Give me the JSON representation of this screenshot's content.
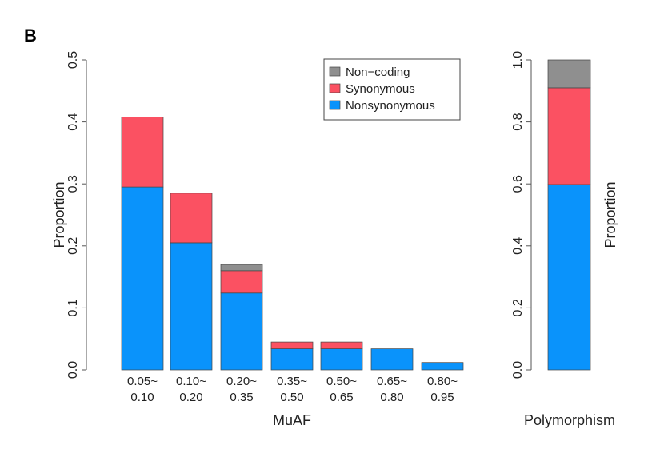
{
  "panel_label": "B",
  "chart_data": [
    {
      "type": "bar",
      "stacked": true,
      "title": "",
      "xlabel": "MuAF",
      "ylabel": "Proportion",
      "ylim": [
        0,
        0.5
      ],
      "yticks": [
        "0.0",
        "0.1",
        "0.2",
        "0.3",
        "0.4",
        "0.5"
      ],
      "categories": [
        [
          "0.05~",
          "0.10"
        ],
        [
          "0.10~",
          "0.20"
        ],
        [
          "0.20~",
          "0.35"
        ],
        [
          "0.35~",
          "0.50"
        ],
        [
          "0.50~",
          "0.65"
        ],
        [
          "0.65~",
          "0.80"
        ],
        [
          "0.80~",
          "0.95"
        ]
      ],
      "series": [
        {
          "name": "Nonsynonymous",
          "color": "#0a93fb",
          "values": [
            0.295,
            0.205,
            0.124,
            0.034,
            0.034,
            0.034,
            0.012
          ]
        },
        {
          "name": "Synonymous",
          "color": "#fb5162",
          "values": [
            0.113,
            0.08,
            0.036,
            0.011,
            0.011,
            0,
            0
          ]
        },
        {
          "name": "Non-coding",
          "color": "#8f8f8f",
          "values": [
            0,
            0,
            0.01,
            0,
            0,
            0,
            0
          ]
        }
      ],
      "legend": {
        "position": "top-right",
        "entries": [
          "Non−coding",
          "Synonymous",
          "Nonsynonymous"
        ]
      },
      "grid": false
    },
    {
      "type": "bar",
      "stacked": true,
      "xlabel": "Polymorphism",
      "ylabel": "Proportion",
      "ylim": [
        0,
        1.0
      ],
      "yticks": [
        "0.0",
        "0.2",
        "0.4",
        "0.6",
        "0.8",
        "1.0"
      ],
      "series": [
        {
          "name": "Nonsynonymous",
          "color": "#0a93fb",
          "values": [
            0.598
          ]
        },
        {
          "name": "Synonymous",
          "color": "#fb5162",
          "values": [
            0.312
          ]
        },
        {
          "name": "Non-coding",
          "color": "#8f8f8f",
          "values": [
            0.09
          ]
        }
      ],
      "grid": false
    }
  ]
}
